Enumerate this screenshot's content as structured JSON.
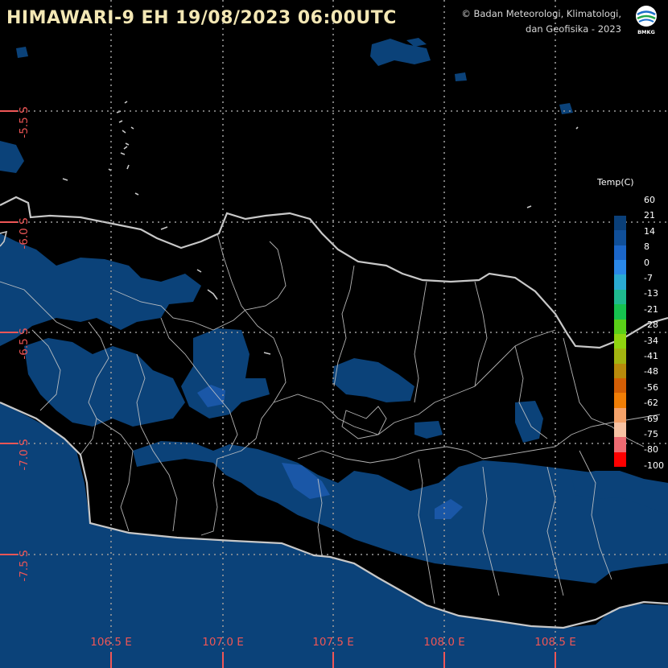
{
  "header": {
    "title": "HIMAWARI-9 EH 19/08/2023  06:00UTC",
    "credit_line1": "© Badan Meteorologi, Klimatologi,",
    "credit_line2": "dan Geofisika -  2023",
    "logo_text": "BMKG"
  },
  "legend": {
    "title": "Temp(C)",
    "labels": [
      "60",
      "21",
      "14",
      "8",
      "0",
      "-7",
      "-13",
      "-21",
      "-28",
      "-34",
      "-41",
      "-48",
      "-56",
      "-62",
      "-69",
      "-75",
      "-80",
      "-100"
    ],
    "colors": [
      "#0a3f78",
      "#104f99",
      "#1b66c9",
      "#2a88e8",
      "#2aaad2",
      "#1fba8f",
      "#16c24f",
      "#5acf18",
      "#8fd40f",
      "#a2b410",
      "#b88a0b",
      "#d35e05",
      "#f07e06",
      "#f4a26a",
      "#f7c2a3",
      "#ee6b72",
      "#ff0000"
    ]
  },
  "axes": {
    "longitude_labels": [
      "106.5 E",
      "107.0 E",
      "107.5 E",
      "108.0 E",
      "108.5 E"
    ],
    "latitude_labels": [
      "-5.5 S",
      "-6.0 S",
      "-6.5 S",
      "-7.0 S",
      "-7.5 S"
    ]
  },
  "colors": {
    "background": "#000000",
    "cloud_dark": "#0b4279",
    "cloud_medium": "#1a57a7",
    "cloud_light": "#2b6ed0",
    "coastline": "#c8c8c8",
    "grid": "#9a9a9a",
    "axis_labels": "#ef5656"
  },
  "icons": {
    "logo": "bmkg-logo-icon"
  }
}
